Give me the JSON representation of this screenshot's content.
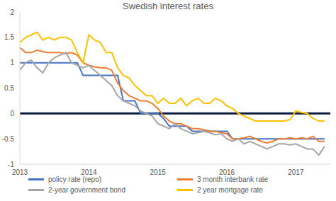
{
  "chart_data": {
    "type": "line",
    "title": "Swedish interest rates",
    "x": [
      2013,
      2013.083,
      2013.167,
      2013.25,
      2013.333,
      2013.417,
      2013.5,
      2013.583,
      2013.667,
      2013.75,
      2013.833,
      2013.917,
      2014,
      2014.083,
      2014.167,
      2014.25,
      2014.333,
      2014.417,
      2014.5,
      2014.583,
      2014.667,
      2014.75,
      2014.833,
      2014.917,
      2015,
      2015.083,
      2015.167,
      2015.25,
      2015.333,
      2015.417,
      2015.5,
      2015.583,
      2015.667,
      2015.75,
      2015.833,
      2015.917,
      2016,
      2016.083,
      2016.167,
      2016.25,
      2016.333,
      2016.417,
      2016.5,
      2016.583,
      2016.667,
      2016.75,
      2016.833,
      2016.917,
      2017,
      2017.083,
      2017.167,
      2017.25,
      2017.333,
      2017.417
    ],
    "series": [
      {
        "name": "policy rate (repo)",
        "color": "#4472c4",
        "values": [
          1,
          1,
          1,
          1,
          1,
          1,
          1,
          1,
          1,
          1,
          1,
          0.75,
          0.75,
          0.75,
          0.75,
          0.75,
          0.75,
          0.75,
          0.25,
          0.25,
          0.25,
          0,
          0,
          0,
          0,
          -0.1,
          -0.25,
          -0.25,
          -0.25,
          -0.25,
          -0.35,
          -0.35,
          -0.35,
          -0.35,
          -0.35,
          -0.35,
          -0.35,
          -0.5,
          -0.5,
          -0.5,
          -0.5,
          -0.5,
          -0.5,
          -0.5,
          -0.5,
          -0.5,
          -0.5,
          -0.5,
          -0.5,
          -0.5,
          -0.5,
          -0.5,
          -0.5,
          -0.5
        ]
      },
      {
        "name": "3 month interbank rate",
        "color": "#ed7d31",
        "values": [
          1.3,
          1.2,
          1.2,
          1.25,
          1.22,
          1.2,
          1.2,
          1.2,
          1.18,
          1.2,
          1.15,
          1,
          0.95,
          0.92,
          0.9,
          0.9,
          0.85,
          0.6,
          0.45,
          0.35,
          0.3,
          0.25,
          0.25,
          0.2,
          0.1,
          -0.05,
          -0.15,
          -0.2,
          -0.2,
          -0.25,
          -0.3,
          -0.3,
          -0.32,
          -0.35,
          -0.35,
          -0.38,
          -0.4,
          -0.5,
          -0.5,
          -0.48,
          -0.45,
          -0.5,
          -0.55,
          -0.58,
          -0.55,
          -0.5,
          -0.5,
          -0.48,
          -0.5,
          -0.48,
          -0.5,
          -0.45,
          -0.55,
          -0.55
        ]
      },
      {
        "name": "2-year government bond",
        "color": "#a5a5a5",
        "values": [
          0.85,
          1,
          1.05,
          0.9,
          0.8,
          1,
          1.1,
          1.15,
          1.2,
          1,
          0.95,
          0.9,
          0.95,
          0.85,
          0.75,
          0.65,
          0.55,
          0.35,
          0.25,
          0.2,
          0.15,
          0.05,
          0,
          -0.05,
          -0.2,
          -0.25,
          -0.3,
          -0.2,
          -0.3,
          -0.35,
          -0.4,
          -0.38,
          -0.35,
          -0.38,
          -0.42,
          -0.4,
          -0.5,
          -0.55,
          -0.5,
          -0.6,
          -0.55,
          -0.6,
          -0.65,
          -0.7,
          -0.65,
          -0.6,
          -0.6,
          -0.62,
          -0.6,
          -0.65,
          -0.7,
          -0.7,
          -0.82,
          -0.65
        ]
      },
      {
        "name": "2 year mortgage rate",
        "color": "#ffc000",
        "values": [
          1.4,
          1.5,
          1.55,
          1.6,
          1.45,
          1.5,
          1.45,
          1.5,
          1.5,
          1.45,
          1.2,
          1,
          1.55,
          1.45,
          1.4,
          1.2,
          1.2,
          0.9,
          0.75,
          0.7,
          0.55,
          0.45,
          0.35,
          0.35,
          0.2,
          0.3,
          0.2,
          0.2,
          0.3,
          0.15,
          0.25,
          0.3,
          0.2,
          0.2,
          0.3,
          0.25,
          0.15,
          0.1,
          0,
          -0.05,
          -0.1,
          -0.15,
          -0.15,
          -0.15,
          -0.15,
          -0.15,
          -0.15,
          -0.12,
          0.05,
          0.02,
          0,
          -0.1,
          -0.15,
          -0.15
        ]
      }
    ],
    "xlim": [
      2013,
      2017.5
    ],
    "xticks": [
      2013,
      2014,
      2015,
      2016,
      2017
    ],
    "ylim": [
      -1,
      2
    ],
    "yticks": [
      -1,
      -0.5,
      0,
      0.5,
      1,
      1.5,
      2
    ],
    "grid": false,
    "legend": "bottom"
  }
}
